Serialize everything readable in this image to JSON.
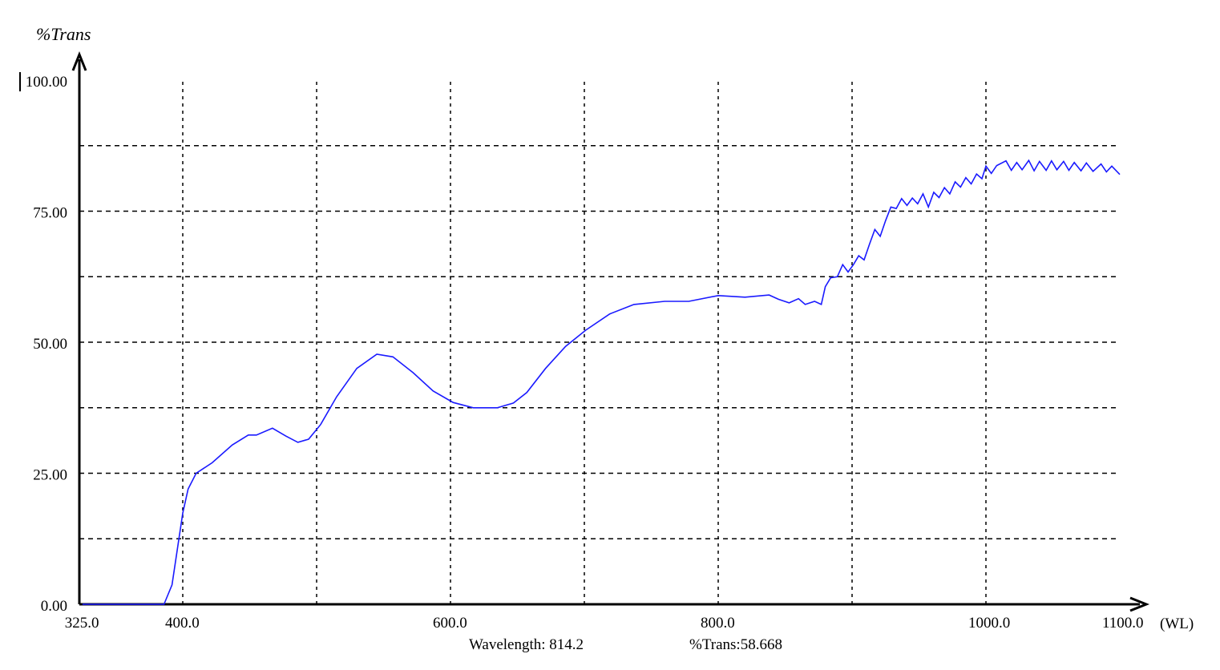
{
  "chart_data": {
    "type": "line",
    "ylabel": "%Trans",
    "xlabel_unit": "(WL)",
    "xlim": [
      325,
      1100
    ],
    "ylim": [
      0,
      100
    ],
    "x_tick_labels": [
      {
        "value": 325,
        "label": "325.0"
      },
      {
        "value": 400,
        "label": "400.0"
      },
      {
        "value": 600,
        "label": "600.0"
      },
      {
        "value": 800,
        "label": "800.0"
      },
      {
        "value": 1000,
        "label": "1000.0"
      },
      {
        "value": 1100,
        "label": "1100.0"
      }
    ],
    "y_tick_labels": [
      {
        "value": 0,
        "label": "0.00"
      },
      {
        "value": 25,
        "label": "25.00"
      },
      {
        "value": 50,
        "label": "50.00"
      },
      {
        "value": 75,
        "label": "75.00"
      },
      {
        "value": 100,
        "label": "100.00"
      }
    ],
    "grid": true,
    "x_grid_step": 100,
    "y_grid_step": 12.5,
    "line_color": "#1a1aff",
    "series": [
      {
        "x": [
          325,
          386,
          392,
          400,
          404,
          410,
          422,
          437,
          449,
          455,
          467,
          477,
          486,
          494,
          503,
          515,
          530,
          545,
          557,
          572,
          587,
          602,
          617,
          635,
          647,
          657,
          671,
          686,
          701,
          719,
          737,
          760,
          778,
          800,
          820,
          838,
          845,
          853,
          860,
          865,
          872,
          877,
          880,
          884,
          889,
          893,
          897,
          901,
          905,
          909,
          913,
          917,
          921,
          925,
          929,
          933,
          937,
          941,
          945,
          949,
          953,
          957,
          961,
          965,
          969,
          973,
          977,
          981,
          985,
          989,
          993,
          997,
          1000,
          1004,
          1008,
          1015,
          1019,
          1023,
          1027,
          1032,
          1036,
          1040,
          1045,
          1049,
          1053,
          1058,
          1062,
          1066,
          1071,
          1075,
          1080,
          1086,
          1090,
          1094,
          1100
        ],
        "y": [
          0,
          0,
          3.7,
          17.4,
          22,
          25,
          27,
          30.4,
          32.3,
          32.3,
          33.6,
          32.1,
          30.9,
          31.5,
          34.3,
          39.6,
          45,
          47.7,
          47.2,
          44.2,
          40.7,
          38.5,
          37.5,
          37.5,
          38.4,
          40.4,
          45,
          49.2,
          52.3,
          55.4,
          57.2,
          57.8,
          57.8,
          58.9,
          58.6,
          59,
          58.2,
          57.5,
          58.3,
          57.2,
          57.8,
          57.2,
          60.6,
          62.3,
          62.5,
          64.8,
          63.4,
          64.8,
          66.5,
          65.7,
          68.7,
          71.5,
          70.2,
          73.2,
          75.8,
          75.5,
          77.4,
          76.1,
          77.5,
          76.4,
          78.3,
          75.8,
          78.6,
          77.6,
          79.5,
          78.3,
          80.6,
          79.6,
          81.4,
          80.2,
          82.1,
          81.2,
          83.6,
          82.2,
          83.7,
          84.6,
          82.8,
          84.3,
          82.9,
          84.7,
          82.7,
          84.5,
          82.8,
          84.6,
          82.9,
          84.5,
          82.8,
          84.3,
          82.7,
          84.2,
          82.6,
          84.0,
          82.5,
          83.6,
          82.0
        ]
      }
    ]
  },
  "readout": {
    "wavelength": "Wavelength: 814.2",
    "trans": "%Trans:58.668"
  }
}
